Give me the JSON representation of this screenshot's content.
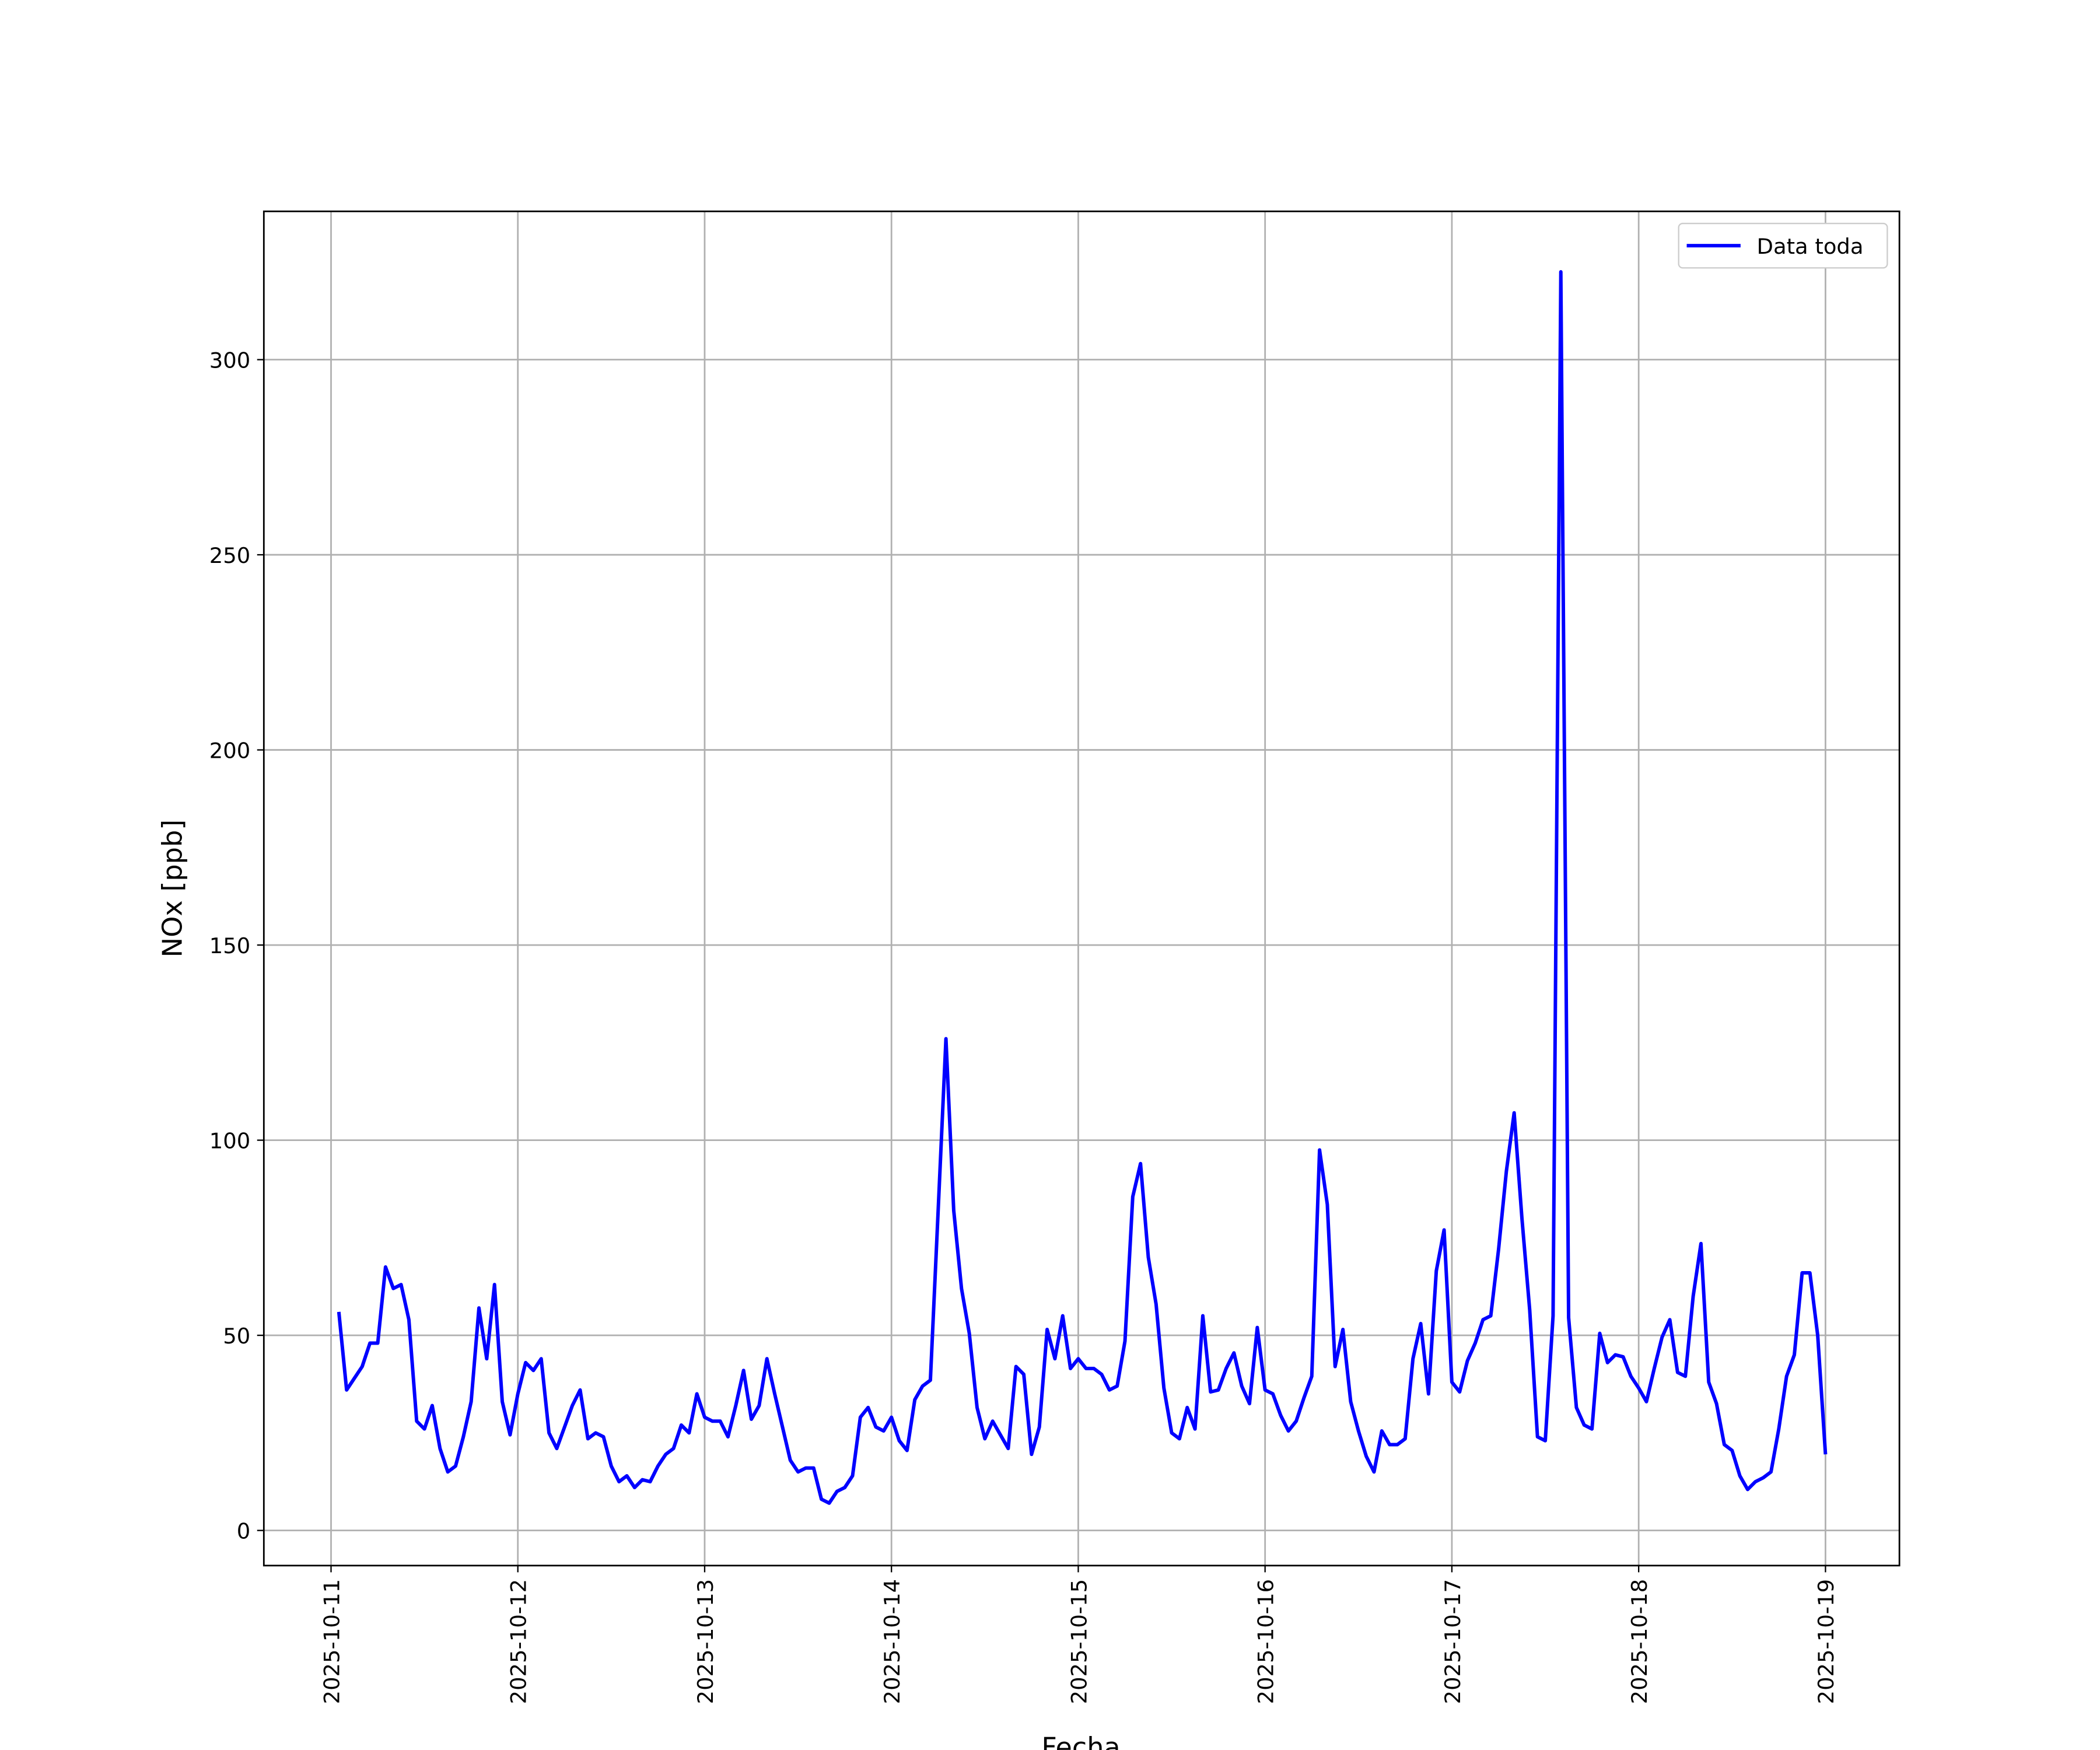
{
  "chart_data": {
    "type": "line",
    "x_label": "Fecha",
    "y_label": "NOx [ppb]",
    "x": [
      "2025-10-11 01:00",
      "2025-10-11 02:00",
      "2025-10-11 03:00",
      "2025-10-11 04:00",
      "2025-10-11 05:00",
      "2025-10-11 06:00",
      "2025-10-11 07:00",
      "2025-10-11 08:00",
      "2025-10-11 09:00",
      "2025-10-11 10:00",
      "2025-10-11 11:00",
      "2025-10-11 12:00",
      "2025-10-11 13:00",
      "2025-10-11 14:00",
      "2025-10-11 15:00",
      "2025-10-11 16:00",
      "2025-10-11 17:00",
      "2025-10-11 18:00",
      "2025-10-11 19:00",
      "2025-10-11 20:00",
      "2025-10-11 21:00",
      "2025-10-11 22:00",
      "2025-10-11 23:00",
      "2025-10-12 00:00",
      "2025-10-12 01:00",
      "2025-10-12 02:00",
      "2025-10-12 03:00",
      "2025-10-12 04:00",
      "2025-10-12 05:00",
      "2025-10-12 06:00",
      "2025-10-12 07:00",
      "2025-10-12 08:00",
      "2025-10-12 09:00",
      "2025-10-12 10:00",
      "2025-10-12 11:00",
      "2025-10-12 12:00",
      "2025-10-12 13:00",
      "2025-10-12 14:00",
      "2025-10-12 15:00",
      "2025-10-12 16:00",
      "2025-10-12 17:00",
      "2025-10-12 18:00",
      "2025-10-12 19:00",
      "2025-10-12 20:00",
      "2025-10-12 21:00",
      "2025-10-12 22:00",
      "2025-10-12 23:00",
      "2025-10-13 00:00",
      "2025-10-13 01:00",
      "2025-10-13 02:00",
      "2025-10-13 03:00",
      "2025-10-13 04:00",
      "2025-10-13 05:00",
      "2025-10-13 06:00",
      "2025-10-13 07:00",
      "2025-10-13 08:00",
      "2025-10-13 09:00",
      "2025-10-13 10:00",
      "2025-10-13 11:00",
      "2025-10-13 12:00",
      "2025-10-13 13:00",
      "2025-10-13 14:00",
      "2025-10-13 15:00",
      "2025-10-13 16:00",
      "2025-10-13 17:00",
      "2025-10-13 18:00",
      "2025-10-13 19:00",
      "2025-10-13 20:00",
      "2025-10-13 21:00",
      "2025-10-13 22:00",
      "2025-10-13 23:00",
      "2025-10-14 00:00",
      "2025-10-14 01:00",
      "2025-10-14 02:00",
      "2025-10-14 03:00",
      "2025-10-14 04:00",
      "2025-10-14 05:00",
      "2025-10-14 06:00",
      "2025-10-14 07:00",
      "2025-10-14 08:00",
      "2025-10-14 09:00",
      "2025-10-14 10:00",
      "2025-10-14 11:00",
      "2025-10-14 12:00",
      "2025-10-14 13:00",
      "2025-10-14 14:00",
      "2025-10-14 15:00",
      "2025-10-14 16:00",
      "2025-10-14 17:00",
      "2025-10-14 18:00",
      "2025-10-14 19:00",
      "2025-10-14 20:00",
      "2025-10-14 21:00",
      "2025-10-14 22:00",
      "2025-10-14 23:00",
      "2025-10-15 00:00",
      "2025-10-15 01:00",
      "2025-10-15 02:00",
      "2025-10-15 03:00",
      "2025-10-15 04:00",
      "2025-10-15 05:00",
      "2025-10-15 06:00",
      "2025-10-15 07:00",
      "2025-10-15 08:00",
      "2025-10-15 09:00",
      "2025-10-15 10:00",
      "2025-10-15 11:00",
      "2025-10-15 12:00",
      "2025-10-15 13:00",
      "2025-10-15 14:00",
      "2025-10-15 15:00",
      "2025-10-15 16:00",
      "2025-10-15 17:00",
      "2025-10-15 18:00",
      "2025-10-15 19:00",
      "2025-10-15 20:00",
      "2025-10-15 21:00",
      "2025-10-15 22:00",
      "2025-10-15 23:00",
      "2025-10-16 00:00",
      "2025-10-16 01:00",
      "2025-10-16 02:00",
      "2025-10-16 03:00",
      "2025-10-16 04:00",
      "2025-10-16 05:00",
      "2025-10-16 06:00",
      "2025-10-16 07:00",
      "2025-10-16 08:00",
      "2025-10-16 09:00",
      "2025-10-16 10:00",
      "2025-10-16 11:00",
      "2025-10-16 12:00",
      "2025-10-16 13:00",
      "2025-10-16 14:00",
      "2025-10-16 15:00",
      "2025-10-16 16:00",
      "2025-10-16 17:00",
      "2025-10-16 18:00",
      "2025-10-16 19:00",
      "2025-10-16 20:00",
      "2025-10-16 21:00",
      "2025-10-16 22:00",
      "2025-10-16 23:00",
      "2025-10-17 00:00",
      "2025-10-17 01:00",
      "2025-10-17 02:00",
      "2025-10-17 03:00",
      "2025-10-17 04:00",
      "2025-10-17 05:00",
      "2025-10-17 06:00",
      "2025-10-17 07:00",
      "2025-10-17 08:00",
      "2025-10-17 09:00",
      "2025-10-17 10:00",
      "2025-10-17 11:00",
      "2025-10-17 12:00",
      "2025-10-17 13:00",
      "2025-10-17 14:00",
      "2025-10-17 15:00",
      "2025-10-17 16:00",
      "2025-10-17 17:00",
      "2025-10-17 18:00",
      "2025-10-17 19:00",
      "2025-10-17 20:00",
      "2025-10-17 21:00",
      "2025-10-17 22:00",
      "2025-10-17 23:00",
      "2025-10-18 00:00",
      "2025-10-18 01:00",
      "2025-10-18 02:00",
      "2025-10-18 03:00",
      "2025-10-18 04:00",
      "2025-10-18 05:00",
      "2025-10-18 06:00",
      "2025-10-18 07:00",
      "2025-10-18 08:00",
      "2025-10-18 09:00",
      "2025-10-18 10:00",
      "2025-10-18 11:00",
      "2025-10-18 12:00",
      "2025-10-18 13:00",
      "2025-10-18 14:00",
      "2025-10-18 15:00",
      "2025-10-18 16:00",
      "2025-10-18 17:00",
      "2025-10-18 18:00",
      "2025-10-18 19:00",
      "2025-10-18 20:00",
      "2025-10-18 21:00",
      "2025-10-18 22:00",
      "2025-10-18 23:00",
      "2025-10-19 00:00"
    ],
    "series": [
      {
        "name": "Data toda",
        "color": "#0000ff",
        "values": [
          56,
          36,
          39,
          42,
          48,
          48,
          67.5,
          62,
          63,
          54,
          28,
          26,
          32,
          21,
          15,
          16.5,
          24,
          33,
          57,
          44,
          63,
          33,
          24.5,
          35,
          43,
          41,
          44,
          25,
          21,
          26.5,
          32,
          36,
          23.5,
          25,
          24,
          16.5,
          12.5,
          14,
          11,
          13,
          12.5,
          16.5,
          19.5,
          21,
          27,
          25,
          35,
          29,
          28,
          28,
          24,
          32,
          41,
          28.5,
          32,
          44,
          35,
          26.5,
          18,
          15,
          16,
          16,
          8,
          7,
          10,
          11,
          14,
          29,
          31.5,
          26.5,
          25.5,
          29,
          23,
          20.5,
          33.5,
          37,
          38.5,
          82,
          126,
          82,
          62,
          50.5,
          31.5,
          23.5,
          28,
          24.5,
          21,
          42,
          40,
          19.5,
          26.5,
          51.5,
          44,
          55,
          41.5,
          44,
          41.5,
          41.5,
          40,
          36,
          37,
          48.5,
          85.5,
          94,
          70,
          58,
          36.5,
          25,
          23.5,
          31.5,
          26,
          55,
          35.5,
          36,
          41.5,
          45.5,
          37,
          32.5,
          52,
          36,
          35,
          29.5,
          25.5,
          28,
          34,
          39.5,
          97.5,
          83.5,
          42,
          51.5,
          33,
          25.5,
          19,
          15,
          25.5,
          22,
          22,
          23.5,
          44,
          53,
          35,
          66.5,
          77,
          38,
          35.5,
          43.5,
          48,
          54,
          55,
          72,
          92,
          107,
          80,
          56.5,
          24,
          23,
          55,
          322.5,
          54.5,
          31.5,
          27,
          26,
          50.5,
          43,
          45,
          44.5,
          39.5,
          36.5,
          33,
          41.5,
          49.5,
          54,
          40.5,
          39.5,
          60,
          73.5,
          38,
          32.5,
          22,
          20.5,
          14,
          10.5,
          12.5,
          13.5,
          15,
          26,
          39.5,
          45,
          66,
          66,
          50,
          19.5
        ]
      }
    ],
    "xlim": [
      "2025-10-10 15:22",
      "2025-10-19 09:30"
    ],
    "xticks": [
      "2025-10-11",
      "2025-10-12",
      "2025-10-13",
      "2025-10-14",
      "2025-10-15",
      "2025-10-16",
      "2025-10-17",
      "2025-10-18",
      "2025-10-19"
    ],
    "ylim": [
      -9,
      338
    ],
    "yticks": [
      0,
      50,
      100,
      150,
      200,
      250,
      300
    ],
    "grid": true,
    "legend": "upper right"
  }
}
